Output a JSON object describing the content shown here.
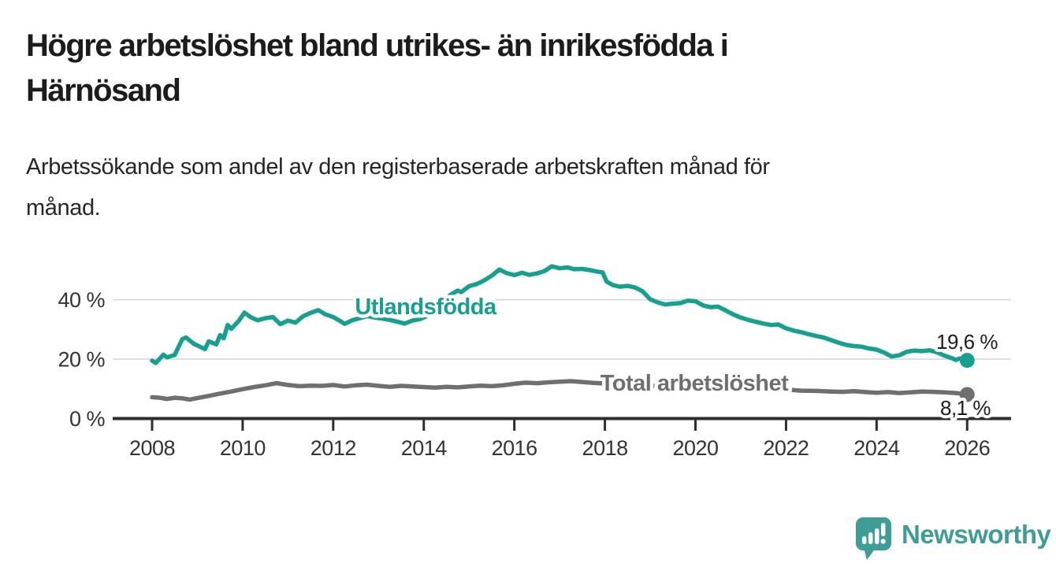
{
  "title": {
    "lines": [
      "Högre arbetslöshet bland utrikes- än inrikesfödda i",
      "Härnösand"
    ]
  },
  "subtitle": {
    "lines": [
      "Arbetssökande som andel av den registerbaserade arbetskraften månad för",
      "månad."
    ]
  },
  "colors": {
    "teal_series": "#17a08f",
    "gray_series": "#6f6f6f",
    "axis": "#2e2e2e",
    "gridline": "#d9d9d9",
    "tick_text": "#333333",
    "value_text": "#1d1d1d",
    "logo_teal": "#3e9d95"
  },
  "chart_data": {
    "type": "line",
    "title": "Högre arbetslöshet bland utrikes- än inrikesfödda i Härnösand",
    "subtitle": "Arbetssökande som andel av den registerbaserade arbetskraften månad för månad.",
    "xlabel": "",
    "ylabel": "",
    "grid": "horizontal",
    "legend_position": "inline-labels",
    "xlim": [
      2007.13,
      2026.97
    ],
    "ylim": [
      0,
      53.45
    ],
    "x_ticks": [
      2008,
      2010,
      2012,
      2014,
      2016,
      2018,
      2020,
      2022,
      2024,
      2026
    ],
    "y_ticks": [
      {
        "value": 0,
        "label": "0 %"
      },
      {
        "value": 20,
        "label": "20 %"
      },
      {
        "value": 40,
        "label": "40 %"
      }
    ],
    "series": [
      {
        "name": "Utlandsfödda",
        "color": "#17a08f",
        "end_value_label": "19,6 %",
        "values": [
          [
            2008.0,
            19.5
          ],
          [
            2008.08,
            18.7
          ],
          [
            2008.25,
            21.5
          ],
          [
            2008.33,
            20.6
          ],
          [
            2008.5,
            21.4
          ],
          [
            2008.58,
            24.0
          ],
          [
            2008.67,
            26.8
          ],
          [
            2008.75,
            27.3
          ],
          [
            2008.92,
            25.2
          ],
          [
            2009.0,
            24.6
          ],
          [
            2009.17,
            23.4
          ],
          [
            2009.25,
            26.0
          ],
          [
            2009.42,
            25.0
          ],
          [
            2009.5,
            28.1
          ],
          [
            2009.58,
            27.0
          ],
          [
            2009.67,
            31.5
          ],
          [
            2009.75,
            30.2
          ],
          [
            2009.92,
            33.0
          ],
          [
            2010.04,
            35.7
          ],
          [
            2010.17,
            34.2
          ],
          [
            2010.33,
            33.1
          ],
          [
            2010.5,
            33.8
          ],
          [
            2010.67,
            34.2
          ],
          [
            2010.83,
            31.8
          ],
          [
            2011.0,
            33.0
          ],
          [
            2011.17,
            32.3
          ],
          [
            2011.33,
            34.4
          ],
          [
            2011.5,
            35.6
          ],
          [
            2011.67,
            36.5
          ],
          [
            2011.83,
            35.1
          ],
          [
            2012.0,
            34.2
          ],
          [
            2012.17,
            32.7
          ],
          [
            2012.25,
            31.9
          ],
          [
            2012.42,
            33.1
          ],
          [
            2012.58,
            33.8
          ],
          [
            2012.75,
            34.5
          ],
          [
            2012.92,
            34.0
          ],
          [
            2013.08,
            33.7
          ],
          [
            2013.25,
            33.2
          ],
          [
            2013.42,
            32.6
          ],
          [
            2013.58,
            32.0
          ],
          [
            2013.75,
            33.0
          ],
          [
            2013.92,
            33.5
          ],
          [
            2014.08,
            34.6
          ],
          [
            2014.25,
            36.5
          ],
          [
            2014.42,
            39.2
          ],
          [
            2014.58,
            41.6
          ],
          [
            2014.75,
            43.1
          ],
          [
            2014.83,
            42.6
          ],
          [
            2015.0,
            44.6
          ],
          [
            2015.17,
            45.3
          ],
          [
            2015.33,
            46.5
          ],
          [
            2015.5,
            48.1
          ],
          [
            2015.67,
            50.2
          ],
          [
            2015.83,
            49.0
          ],
          [
            2016.0,
            48.3
          ],
          [
            2016.17,
            49.1
          ],
          [
            2016.33,
            48.4
          ],
          [
            2016.5,
            48.9
          ],
          [
            2016.67,
            49.7
          ],
          [
            2016.83,
            51.3
          ],
          [
            2017.0,
            50.6
          ],
          [
            2017.17,
            50.9
          ],
          [
            2017.33,
            50.3
          ],
          [
            2017.5,
            50.4
          ],
          [
            2017.67,
            50.0
          ],
          [
            2017.83,
            49.5
          ],
          [
            2017.95,
            49.2
          ],
          [
            2018.04,
            46.1
          ],
          [
            2018.17,
            45.0
          ],
          [
            2018.33,
            44.4
          ],
          [
            2018.5,
            44.7
          ],
          [
            2018.67,
            44.1
          ],
          [
            2018.83,
            42.9
          ],
          [
            2019.0,
            40.2
          ],
          [
            2019.17,
            39.1
          ],
          [
            2019.33,
            38.4
          ],
          [
            2019.5,
            38.7
          ],
          [
            2019.67,
            38.9
          ],
          [
            2019.83,
            39.7
          ],
          [
            2020.0,
            39.5
          ],
          [
            2020.17,
            38.1
          ],
          [
            2020.33,
            37.5
          ],
          [
            2020.5,
            37.7
          ],
          [
            2020.67,
            36.4
          ],
          [
            2020.83,
            35.1
          ],
          [
            2021.0,
            34.0
          ],
          [
            2021.17,
            33.2
          ],
          [
            2021.33,
            32.6
          ],
          [
            2021.5,
            32.0
          ],
          [
            2021.67,
            31.5
          ],
          [
            2021.83,
            31.7
          ],
          [
            2022.0,
            30.4
          ],
          [
            2022.17,
            29.6
          ],
          [
            2022.33,
            29.1
          ],
          [
            2022.5,
            28.4
          ],
          [
            2022.67,
            27.8
          ],
          [
            2022.83,
            27.3
          ],
          [
            2023.0,
            26.4
          ],
          [
            2023.17,
            25.5
          ],
          [
            2023.33,
            24.8
          ],
          [
            2023.5,
            24.4
          ],
          [
            2023.67,
            24.2
          ],
          [
            2023.83,
            23.6
          ],
          [
            2024.0,
            23.2
          ],
          [
            2024.17,
            22.2
          ],
          [
            2024.33,
            20.9
          ],
          [
            2024.5,
            21.3
          ],
          [
            2024.67,
            22.5
          ],
          [
            2024.83,
            22.9
          ],
          [
            2025.0,
            22.7
          ],
          [
            2025.17,
            23.0
          ],
          [
            2025.33,
            22.3
          ],
          [
            2025.5,
            21.2
          ],
          [
            2025.67,
            20.3
          ],
          [
            2025.75,
            19.7
          ],
          [
            2025.83,
            20.2
          ],
          [
            2026.0,
            19.6
          ]
        ]
      },
      {
        "name": "Total arbetslöshet",
        "color": "#6f6f6f",
        "end_value_label": "8,1 %",
        "values": [
          [
            2008.0,
            7.2
          ],
          [
            2008.17,
            7.0
          ],
          [
            2008.33,
            6.6
          ],
          [
            2008.5,
            7.0
          ],
          [
            2008.67,
            6.8
          ],
          [
            2008.83,
            6.4
          ],
          [
            2009.0,
            6.9
          ],
          [
            2009.25,
            7.6
          ],
          [
            2009.5,
            8.4
          ],
          [
            2009.75,
            9.1
          ],
          [
            2010.0,
            9.9
          ],
          [
            2010.25,
            10.6
          ],
          [
            2010.5,
            11.2
          ],
          [
            2010.75,
            11.9
          ],
          [
            2011.0,
            11.3
          ],
          [
            2011.25,
            10.9
          ],
          [
            2011.5,
            11.1
          ],
          [
            2011.75,
            11.0
          ],
          [
            2012.0,
            11.3
          ],
          [
            2012.25,
            10.8
          ],
          [
            2012.5,
            11.2
          ],
          [
            2012.75,
            11.4
          ],
          [
            2013.0,
            11.0
          ],
          [
            2013.25,
            10.7
          ],
          [
            2013.5,
            11.0
          ],
          [
            2013.75,
            10.8
          ],
          [
            2014.0,
            10.6
          ],
          [
            2014.25,
            10.4
          ],
          [
            2014.5,
            10.7
          ],
          [
            2014.75,
            10.5
          ],
          [
            2015.0,
            10.8
          ],
          [
            2015.25,
            11.1
          ],
          [
            2015.5,
            10.9
          ],
          [
            2015.75,
            11.2
          ],
          [
            2016.0,
            11.7
          ],
          [
            2016.25,
            12.1
          ],
          [
            2016.5,
            11.9
          ],
          [
            2016.75,
            12.2
          ],
          [
            2017.0,
            12.4
          ],
          [
            2017.25,
            12.6
          ],
          [
            2017.5,
            12.3
          ],
          [
            2017.75,
            12.0
          ],
          [
            2018.0,
            11.8
          ],
          [
            2018.33,
            11.5
          ],
          [
            2018.67,
            11.3
          ],
          [
            2019.0,
            11.0
          ],
          [
            2019.33,
            10.8
          ],
          [
            2019.67,
            10.9
          ],
          [
            2020.0,
            11.1
          ],
          [
            2020.33,
            11.7
          ],
          [
            2020.67,
            11.4
          ],
          [
            2021.0,
            11.0
          ],
          [
            2021.33,
            10.5
          ],
          [
            2021.67,
            10.1
          ],
          [
            2022.0,
            9.8
          ],
          [
            2022.33,
            9.4
          ],
          [
            2022.67,
            9.3
          ],
          [
            2023.0,
            9.1
          ],
          [
            2023.25,
            9.0
          ],
          [
            2023.5,
            9.2
          ],
          [
            2023.75,
            8.9
          ],
          [
            2024.0,
            8.7
          ],
          [
            2024.25,
            8.9
          ],
          [
            2024.5,
            8.6
          ],
          [
            2024.75,
            8.8
          ],
          [
            2025.0,
            9.1
          ],
          [
            2025.25,
            9.0
          ],
          [
            2025.5,
            8.8
          ],
          [
            2025.75,
            8.6
          ],
          [
            2026.0,
            8.1
          ]
        ]
      }
    ],
    "annotations": {
      "series_label_teal": "Utlandsfödda",
      "series_label_gray": "Total arbetslöshet",
      "end_label_teal": "19,6 %",
      "end_label_gray": "8,1 %"
    }
  },
  "logo": {
    "text": "Newsworthy",
    "icon": "bar-chart-speech-bubble-icon"
  }
}
